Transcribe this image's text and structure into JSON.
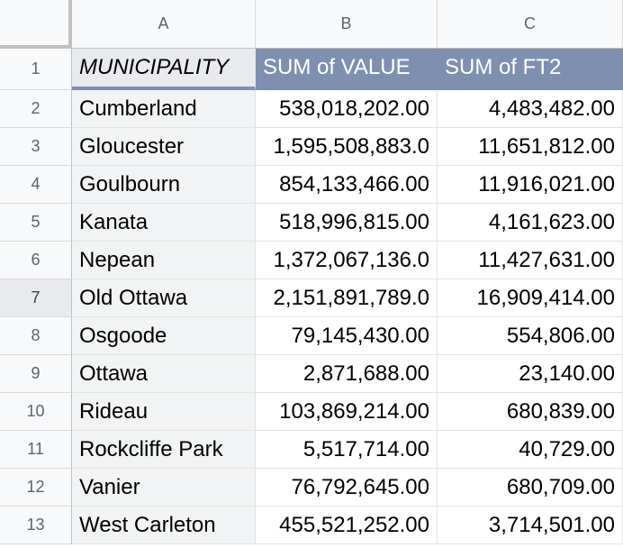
{
  "columns": [
    "A",
    "B",
    "C"
  ],
  "header_row": {
    "row_number": "1",
    "municipality": "MUNICIPALITY",
    "sum_value": "SUM of VALUE",
    "sum_ft2": "SUM of FT2"
  },
  "rows": [
    {
      "row_number": "2",
      "municipality": "Cumberland",
      "sum_value": "538,018,202.00",
      "sum_ft2": "4,483,482.00"
    },
    {
      "row_number": "3",
      "municipality": "Gloucester",
      "sum_value": "1,595,508,883.0",
      "sum_ft2": "11,651,812.00"
    },
    {
      "row_number": "4",
      "municipality": "Goulbourn",
      "sum_value": "854,133,466.00",
      "sum_ft2": "11,916,021.00"
    },
    {
      "row_number": "5",
      "municipality": "Kanata",
      "sum_value": "518,996,815.00",
      "sum_ft2": "4,161,623.00"
    },
    {
      "row_number": "6",
      "municipality": "Nepean",
      "sum_value": "1,372,067,136.0",
      "sum_ft2": "11,427,631.00"
    },
    {
      "row_number": "7",
      "municipality": "Old Ottawa",
      "sum_value": "2,151,891,789.0",
      "sum_ft2": "16,909,414.00"
    },
    {
      "row_number": "8",
      "municipality": "Osgoode",
      "sum_value": "79,145,430.00",
      "sum_ft2": "554,806.00"
    },
    {
      "row_number": "9",
      "municipality": "Ottawa",
      "sum_value": "2,871,688.00",
      "sum_ft2": "23,140.00"
    },
    {
      "row_number": "10",
      "municipality": "Rideau",
      "sum_value": "103,869,214.00",
      "sum_ft2": "680,839.00"
    },
    {
      "row_number": "11",
      "municipality": "Rockcliffe Park",
      "sum_value": "5,517,714.00",
      "sum_ft2": "40,729.00"
    },
    {
      "row_number": "12",
      "municipality": "Vanier",
      "sum_value": "76,792,645.00",
      "sum_ft2": "680,709.00"
    },
    {
      "row_number": "13",
      "municipality": "West Carleton",
      "sum_value": "455,521,252.00",
      "sum_ft2": "3,714,501.00"
    }
  ],
  "selected_row": "7",
  "colors": {
    "header_accent": "#7f8fb0",
    "header_text": "#ffffff"
  }
}
